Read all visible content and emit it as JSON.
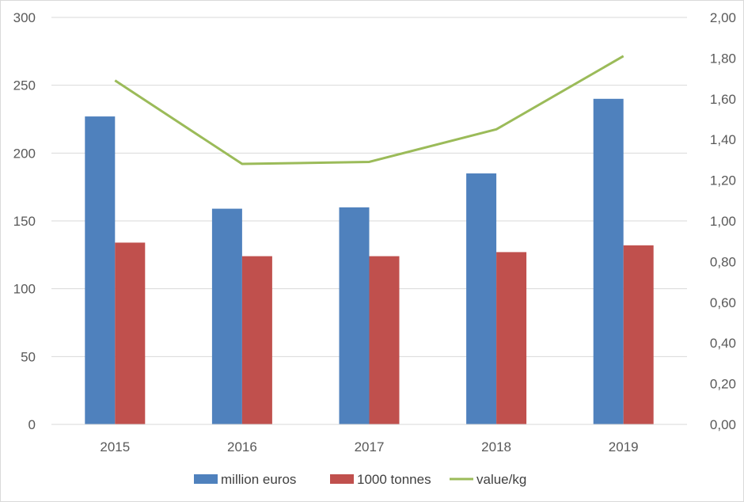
{
  "chart_data": {
    "type": "bar",
    "title": "",
    "xlabel": "",
    "ylabel": "",
    "categories": [
      "2015",
      "2016",
      "2017",
      "2018",
      "2019"
    ],
    "series": [
      {
        "name": "million euros",
        "type": "bar",
        "axis": "left",
        "color": "#4f81bd",
        "values": [
          227,
          159,
          160,
          185,
          240
        ]
      },
      {
        "name": "1000 tonnes",
        "type": "bar",
        "axis": "left",
        "color": "#c0504d",
        "values": [
          134,
          124,
          124,
          127,
          132
        ]
      },
      {
        "name": "value/kg",
        "type": "line",
        "axis": "right",
        "color": "#9bbb59",
        "values": [
          1.69,
          1.28,
          1.29,
          1.45,
          1.81
        ]
      }
    ],
    "ylim": [
      0,
      300
    ],
    "y2lim": [
      0,
      2
    ],
    "yticks": [
      "0",
      "50",
      "100",
      "150",
      "200",
      "250",
      "300"
    ],
    "y2ticks": [
      "0,00",
      "0,20",
      "0,40",
      "0,60",
      "0,80",
      "1,00",
      "1,20",
      "1,40",
      "1,60",
      "1,80",
      "2,00"
    ],
    "grid": true,
    "legend_position": "bottom"
  }
}
